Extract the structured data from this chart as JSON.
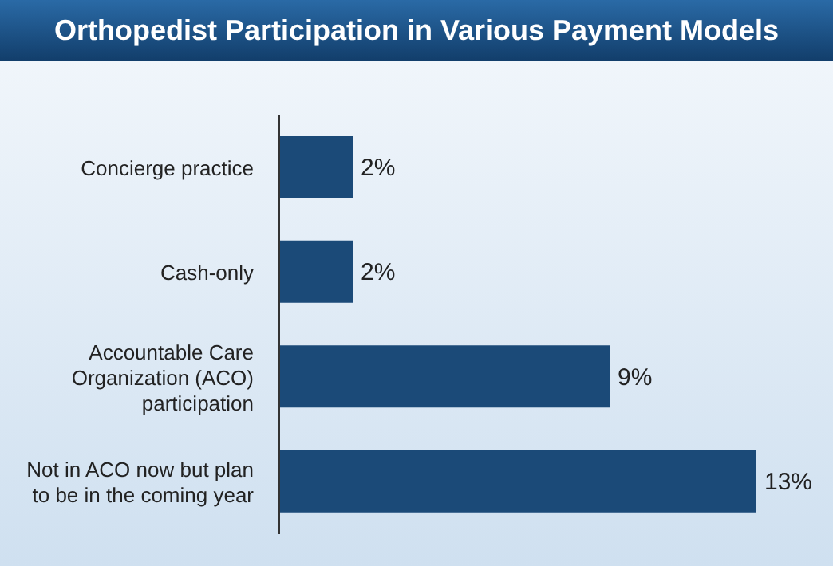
{
  "chart_data": {
    "type": "bar",
    "orientation": "horizontal",
    "title": "Orthopedist Participation in Various Payment Models",
    "categories": [
      "Concierge practice",
      "Cash-only",
      "Accountable Care Organization (ACO) participation",
      "Not in ACO now but plan to be in the coming year"
    ],
    "values": [
      2,
      2,
      9,
      13
    ],
    "value_labels": [
      "2%",
      "2%",
      "9%",
      "13%"
    ],
    "color": "#1b4a78"
  }
}
